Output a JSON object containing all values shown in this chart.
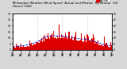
{
  "background_color": "#d8d8d8",
  "plot_bg_color": "#ffffff",
  "bar_color": "#dd0000",
  "line_color": "#0000cc",
  "ylim": [
    0,
    30
  ],
  "num_points": 1440,
  "seed": 42,
  "title_fontsize": 2.8,
  "tick_fontsize": 2.2,
  "legend_fontsize": 2.5,
  "yticks": [
    0,
    5,
    10,
    15,
    20,
    25,
    30
  ],
  "vline_color": "#aaaaaa",
  "vline_hours": [
    6,
    12,
    18
  ]
}
